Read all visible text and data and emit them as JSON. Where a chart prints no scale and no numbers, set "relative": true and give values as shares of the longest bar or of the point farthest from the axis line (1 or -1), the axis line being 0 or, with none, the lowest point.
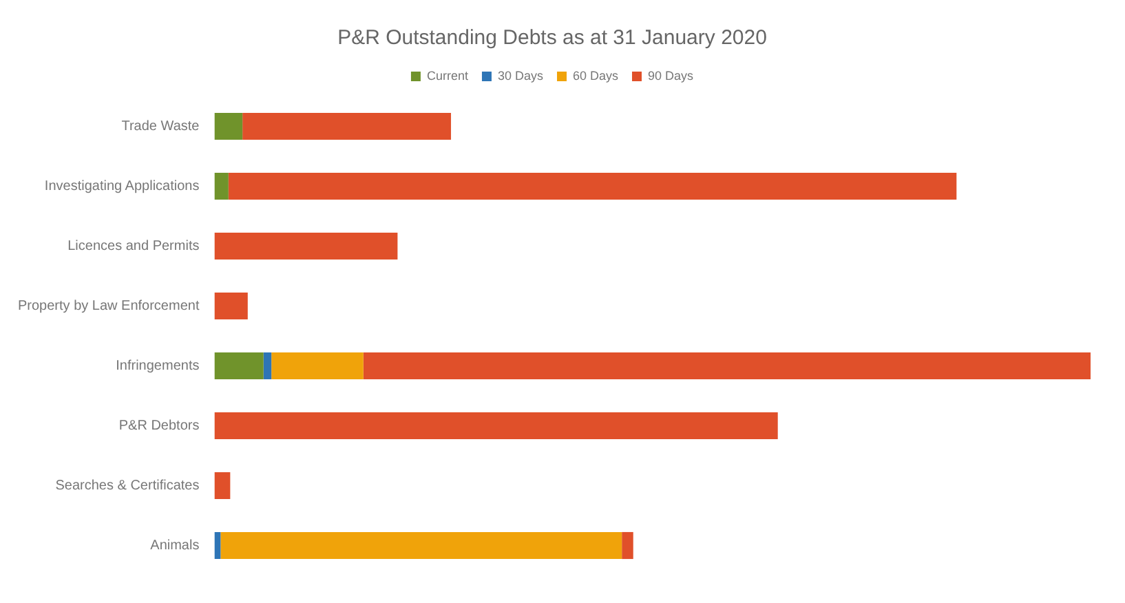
{
  "chart_data": {
    "type": "bar",
    "title": "P&R Outstanding Debts as at 31 January 2020",
    "orientation": "horizontal",
    "stacked": true,
    "relative": true,
    "legend": "top",
    "categories": [
      "Trade Waste",
      "Investigating Applications",
      "Licences and Permits",
      "Property by Law Enforcement",
      "Infringements",
      "P&R Debtors",
      "Searches & Certificates",
      "Animals"
    ],
    "series": [
      {
        "name": "Current",
        "color": "#70932b",
        "values": [
          0.032,
          0.016,
          null,
          null,
          0.056,
          null,
          null,
          null
        ]
      },
      {
        "name": "30 Days",
        "color": "#2e75b6",
        "values": [
          null,
          null,
          null,
          null,
          0.009,
          null,
          null,
          0.007
        ]
      },
      {
        "name": "60 Days",
        "color": "#f0a30a",
        "values": [
          null,
          null,
          null,
          null,
          0.105,
          null,
          null,
          0.458
        ]
      },
      {
        "name": "90 Days",
        "color": "#e0502a",
        "values": [
          0.238,
          0.831,
          0.209,
          0.038,
          0.83,
          0.643,
          0.018,
          0.013
        ]
      }
    ]
  }
}
